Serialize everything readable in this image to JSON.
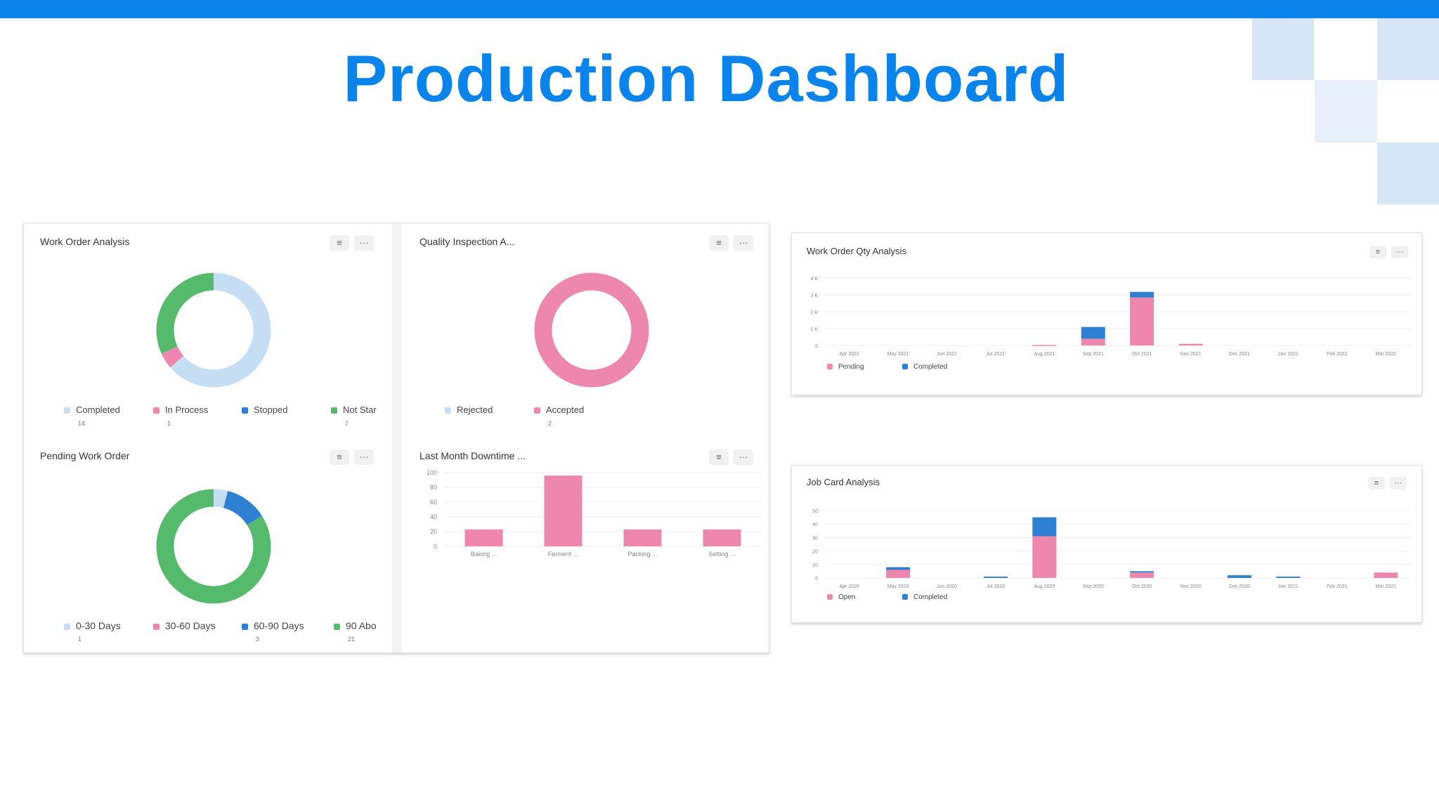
{
  "page": {
    "title": "Production Dashboard"
  },
  "colors": {
    "brand": "#0a84ea",
    "completed_light": "#c6def3",
    "pink": "#ee87ad",
    "blue": "#2f7fd3",
    "green": "#55ba6c"
  },
  "icons": {
    "filter": "filter-icon",
    "more": "more-icon"
  },
  "cards": {
    "work_order_analysis": {
      "title": "Work Order Analysis",
      "legend": [
        {
          "label": "Completed",
          "count": "14",
          "color": "#c6def3"
        },
        {
          "label": "In Process",
          "count": "1",
          "color": "#ee87ad"
        },
        {
          "label": "Stopped",
          "count": "",
          "color": "#2f7fd3"
        },
        {
          "label": "Not Star",
          "count": "7",
          "color": "#55ba6c"
        }
      ]
    },
    "quality_inspection": {
      "title": "Quality Inspection A...",
      "legend": [
        {
          "label": "Rejected",
          "count": "",
          "color": "#c6def3"
        },
        {
          "label": "Accepted",
          "count": "2",
          "color": "#ee87ad"
        }
      ]
    },
    "pending_work_order": {
      "title": "Pending Work Order",
      "legend": [
        {
          "label": "0-30 Days",
          "count": "1",
          "color": "#c6def3"
        },
        {
          "label": "30-60 Days",
          "count": "",
          "color": "#ee87ad"
        },
        {
          "label": "60-90 Days",
          "count": "3",
          "color": "#2f7fd3"
        },
        {
          "label": "90 Abo",
          "count": "21",
          "color": "#55ba6c"
        }
      ]
    },
    "last_month_downtime": {
      "title": "Last Month Downtime ..."
    },
    "work_order_qty": {
      "title": "Work Order Qty Analysis",
      "legend": [
        {
          "label": "Pending",
          "color": "#ee87ad"
        },
        {
          "label": "Completed",
          "color": "#2f7fd3"
        }
      ]
    },
    "job_card": {
      "title": "Job Card Analysis",
      "legend": [
        {
          "label": "Open",
          "color": "#ee87ad"
        },
        {
          "label": "Completed",
          "color": "#2f7fd3"
        }
      ]
    }
  },
  "chart_data": [
    {
      "type": "pie",
      "chart": "work_order_analysis",
      "categories": [
        "Completed",
        "In Process",
        "Stopped",
        "Not Star"
      ],
      "values": [
        14,
        1,
        0,
        7
      ],
      "colors": [
        "#c6def3",
        "#ee87ad",
        "#2f7fd3",
        "#55ba6c"
      ]
    },
    {
      "type": "pie",
      "chart": "quality_inspection",
      "categories": [
        "Rejected",
        "Accepted"
      ],
      "values": [
        0,
        2
      ],
      "colors": [
        "#c6def3",
        "#ee87ad"
      ]
    },
    {
      "type": "pie",
      "chart": "pending_work_order",
      "categories": [
        "0-30 Days",
        "30-60 Days",
        "60-90 Days",
        "90 Abo"
      ],
      "values": [
        1,
        0,
        3,
        21
      ],
      "colors": [
        "#c6def3",
        "#ee87ad",
        "#2f7fd3",
        "#55ba6c"
      ]
    },
    {
      "type": "bar",
      "chart": "last_month_downtime",
      "categories": [
        "Baking ...",
        "Ferment ...",
        "Packing ...",
        "Setting ..."
      ],
      "values": [
        23,
        96,
        23,
        23
      ],
      "yticks": [
        "0",
        "20",
        "40",
        "60",
        "80",
        "100"
      ],
      "ylim": [
        0,
        100
      ],
      "color": "#ee87ad"
    },
    {
      "type": "bar",
      "chart": "work_order_qty",
      "stacked": true,
      "categories": [
        "Apr 2021",
        "May 2021",
        "Jun 2021",
        "Jul 2021",
        "Aug 2021",
        "Sep 2021",
        "Oct 2021",
        "Nov 2021",
        "Dec 2021",
        "Jan 2022",
        "Feb 2022",
        "Mar 2022"
      ],
      "yticks": [
        "0",
        "1 K",
        "2 K",
        "3 K",
        "4 K"
      ],
      "ylim": [
        0,
        4000
      ],
      "series": [
        {
          "name": "Pending",
          "color": "#ee87ad",
          "values": [
            0,
            0,
            0,
            0,
            30,
            400,
            2850,
            100,
            0,
            0,
            0,
            0
          ]
        },
        {
          "name": "Completed",
          "color": "#2f7fd3",
          "values": [
            0,
            0,
            0,
            0,
            0,
            700,
            330,
            0,
            0,
            0,
            0,
            0
          ]
        }
      ]
    },
    {
      "type": "bar",
      "chart": "job_card",
      "stacked": true,
      "categories": [
        "Apr 2020",
        "May 2020",
        "Jun 2020",
        "Jul 2020",
        "Aug 2020",
        "Sep 2020",
        "Oct 2020",
        "Nov 2020",
        "Dec 2020",
        "Jan 2021",
        "Feb 2021",
        "Mar 2021"
      ],
      "yticks": [
        "0",
        "10",
        "20",
        "30",
        "40",
        "50"
      ],
      "ylim": [
        0,
        50
      ],
      "series": [
        {
          "name": "Open",
          "color": "#ee87ad",
          "values": [
            0,
            6,
            0,
            0,
            31,
            0,
            4,
            0,
            0,
            0,
            0,
            4
          ]
        },
        {
          "name": "Completed",
          "color": "#2f7fd3",
          "values": [
            0,
            2,
            0,
            1,
            14,
            0,
            1,
            0,
            2,
            1,
            0,
            0
          ]
        }
      ]
    }
  ]
}
